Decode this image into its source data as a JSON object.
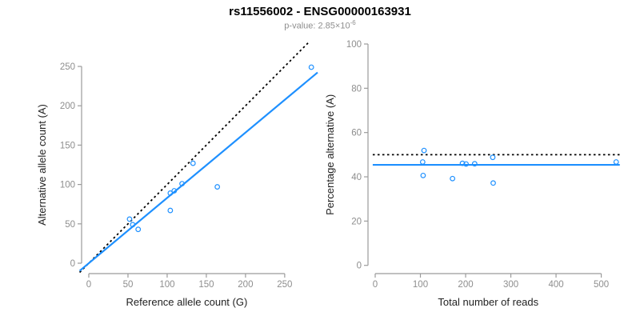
{
  "header": {
    "title": "rs11556002 - ENSG00000163931",
    "subtitle_prefix": "p-value: 2.85×10",
    "subtitle_exponent": "-6"
  },
  "colors": {
    "point": "#1E90FF",
    "fit_line": "#1E90FF",
    "identity_line": "#000000",
    "axis": "#9b9b9b",
    "tick_label": "#8e8e8e",
    "axis_title": "#222222",
    "title": "#000000",
    "subtitle": "#8e8e8e"
  },
  "chart_data": [
    {
      "type": "scatter",
      "xlabel": "Reference allele count (G)",
      "ylabel": "Alternative allele count (A)",
      "xlim": [
        0,
        292
      ],
      "ylim": [
        0,
        280
      ],
      "xticks": [
        0,
        50,
        100,
        150,
        200,
        250
      ],
      "yticks": [
        0,
        50,
        100,
        150,
        200,
        250
      ],
      "grid": false,
      "legend": null,
      "points": [
        [
          52,
          56
        ],
        [
          56,
          49
        ],
        [
          63,
          43
        ],
        [
          104,
          67
        ],
        [
          104,
          89
        ],
        [
          109,
          92
        ],
        [
          119,
          101
        ],
        [
          133,
          127
        ],
        [
          164,
          97
        ],
        [
          284,
          249
        ]
      ],
      "identity_line": {
        "style": "dotted",
        "slope": 1,
        "intercept": 0
      },
      "fit_line": {
        "style": "solid",
        "slope": 0.83,
        "intercept": 0
      }
    },
    {
      "type": "scatter",
      "xlabel": "Total number of reads",
      "ylabel": "Percentage alternative (A)",
      "xlim": [
        0,
        545
      ],
      "ylim": [
        0,
        100
      ],
      "xticks": [
        0,
        100,
        200,
        300,
        400,
        500
      ],
      "yticks": [
        0,
        20,
        40,
        60,
        80,
        100
      ],
      "grid": false,
      "legend": null,
      "points": [
        [
          108,
          51.9
        ],
        [
          105,
          46.7
        ],
        [
          106,
          40.6
        ],
        [
          171,
          39.2
        ],
        [
          193,
          46.1
        ],
        [
          201,
          45.8
        ],
        [
          220,
          45.9
        ],
        [
          260,
          48.8
        ],
        [
          261,
          37.2
        ],
        [
          533,
          46.7
        ]
      ],
      "identity_line": {
        "style": "dotted",
        "y": 50
      },
      "fit_line": {
        "style": "solid",
        "y": 45.4
      }
    }
  ]
}
